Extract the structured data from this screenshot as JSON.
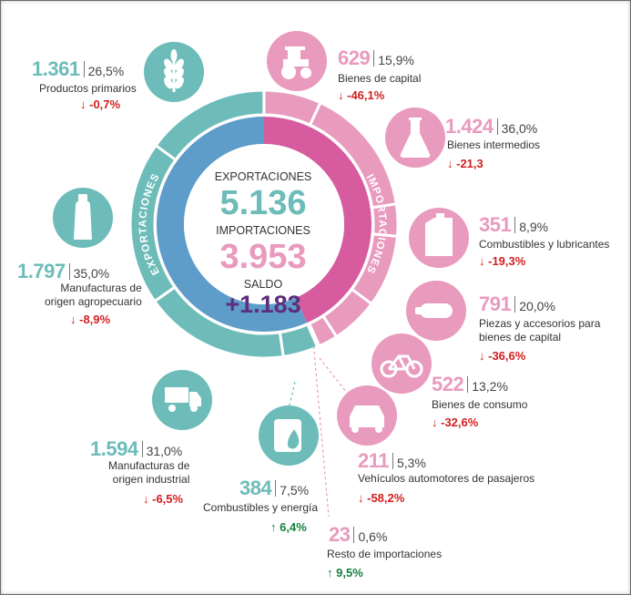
{
  "center": {
    "exp_label": "EXPORTACIONES",
    "exp_value": "5.136",
    "imp_label": "IMPORTACIONES",
    "imp_value": "3.953",
    "saldo_label": "SALDO",
    "saldo_value": "+1.183",
    "ring_exp": "EXPORTACIONES",
    "ring_imp": "IMPORTACIONES"
  },
  "colors": {
    "export": "#6dbcb9",
    "import": "#e99bbe",
    "ring_exp": "#5e9cc9",
    "ring_imp": "#d65b9f",
    "saldo": "#5d2e7e",
    "neg": "#d21f1f",
    "pos": "#15813d"
  },
  "chart_data": {
    "type": "pie",
    "series": [
      {
        "name": "EXPORTACIONES",
        "total": 5136,
        "items": [
          {
            "label": "Productos primarios",
            "value": 1361,
            "share": 26.5,
            "change": -0.7,
            "icon": "wheat-icon"
          },
          {
            "label": "Manufacturas de origen agropecuario",
            "value": 1797,
            "share": 35.0,
            "change": -8.9,
            "icon": "bottle-icon"
          },
          {
            "label": "Manufacturas de origen industrial",
            "value": 1594,
            "share": 31.0,
            "change": -6.5,
            "icon": "truck-icon"
          },
          {
            "label": "Combustibles y energía",
            "value": 384,
            "share": 7.5,
            "change": 6.4,
            "icon": "oil-barrel-icon"
          }
        ]
      },
      {
        "name": "IMPORTACIONES",
        "total": 3953,
        "items": [
          {
            "label": "Bienes de capital",
            "value": 629,
            "share": 15.9,
            "change": -46.1,
            "icon": "tractor-icon"
          },
          {
            "label": "Bienes intermedios",
            "value": 1424,
            "share": 36.0,
            "change": -21.3,
            "icon": "flask-icon"
          },
          {
            "label": "Combustibles y lubricantes",
            "value": 351,
            "share": 8.9,
            "change": -19.3,
            "icon": "jerrycan-icon"
          },
          {
            "label": "Piezas y accesorios para bienes de capital",
            "value": 791,
            "share": 20.0,
            "change": -36.6,
            "icon": "spring-icon"
          },
          {
            "label": "Bienes de consumo",
            "value": 522,
            "share": 13.2,
            "change": -32.6,
            "icon": "bicycle-icon"
          },
          {
            "label": "Vehículos automotores de pasajeros",
            "value": 211,
            "share": 5.3,
            "change": -58.2,
            "icon": "car-icon"
          },
          {
            "label": "Resto de importaciones",
            "value": 23,
            "share": 0.6,
            "change": 9.5,
            "icon": ""
          }
        ]
      }
    ],
    "saldo": 1183
  },
  "labels": {
    "pp": {
      "value": "1.361",
      "pct": "26,5%",
      "name": "Productos primarios",
      "chg": "-0,7%"
    },
    "moa": {
      "value": "1.797",
      "pct": "35,0%",
      "name1": "Manufacturas de",
      "name2": "origen agropecuario",
      "chg": "-8,9%"
    },
    "moi": {
      "value": "1.594",
      "pct": "31,0%",
      "name1": "Manufacturas de",
      "name2": "origen industrial",
      "chg": "-6,5%"
    },
    "ce": {
      "value": "384",
      "pct": "7,5%",
      "name": "Combustibles y energía",
      "chg": "6,4%"
    },
    "bk": {
      "value": "629",
      "pct": "15,9%",
      "name": "Bienes de capital",
      "chg": "-46,1%"
    },
    "bi": {
      "value": "1.424",
      "pct": "36,0%",
      "name": "Bienes intermedios",
      "chg": "-21,3"
    },
    "cl": {
      "value": "351",
      "pct": "8,9%",
      "name": "Combustibles y lubricantes",
      "chg": "-19,3%"
    },
    "pa": {
      "value": "791",
      "pct": "20,0%",
      "name1": "Piezas y accesorios para",
      "name2": "bienes de capital",
      "chg": "-36,6%"
    },
    "bc": {
      "value": "522",
      "pct": "13,2%",
      "name": "Bienes de consumo",
      "chg": "-32,6%"
    },
    "va": {
      "value": "211",
      "pct": "5,3%",
      "name": "Vehículos automotores de pasajeros",
      "chg": "-58,2%"
    },
    "ri": {
      "value": "23",
      "pct": "0,6%",
      "name": "Resto de importaciones",
      "chg": "9,5%"
    }
  }
}
